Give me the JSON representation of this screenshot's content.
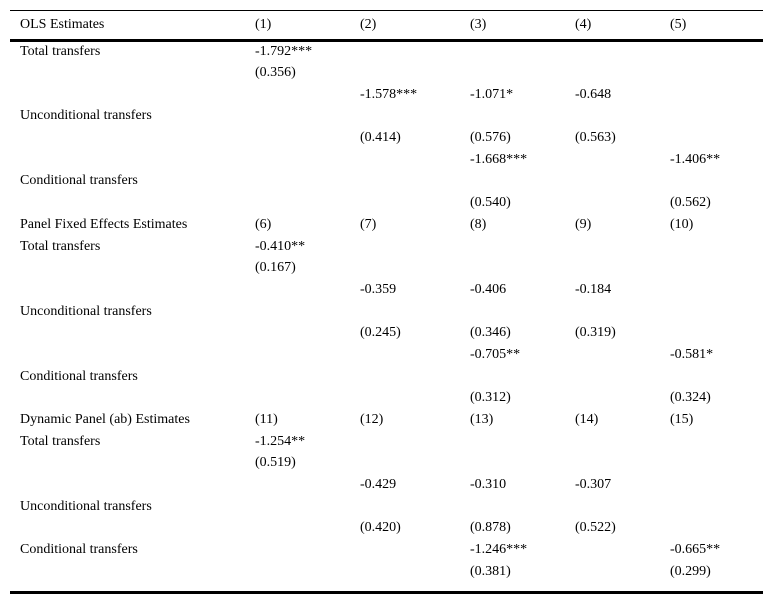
{
  "colors": {
    "background": "#ffffff",
    "text": "#000000",
    "rule": "#000000"
  },
  "table": {
    "panels": [
      {
        "title": "OLS Estimates",
        "column_labels": [
          "(1)",
          "(2)",
          "(3)",
          "(4)",
          "(5)"
        ],
        "rows": [
          [
            "Total transfers",
            "-1.792***",
            "",
            "",
            "",
            ""
          ],
          [
            "",
            "(0.356)",
            "",
            "",
            "",
            ""
          ],
          [
            "",
            "",
            "-1.578***",
            "-1.071*",
            "-0.648",
            ""
          ],
          [
            "Unconditional transfers",
            "",
            "",
            "",
            "",
            ""
          ],
          [
            "",
            "",
            "(0.414)",
            "(0.576)",
            "(0.563)",
            ""
          ],
          [
            "",
            "",
            "",
            "-1.668***",
            "",
            "-1.406**"
          ],
          [
            "Conditional transfers",
            "",
            "",
            "",
            "",
            ""
          ],
          [
            "",
            "",
            "",
            "(0.540)",
            "",
            "(0.562)"
          ]
        ]
      },
      {
        "title": "Panel Fixed Effects Estimates",
        "column_labels": [
          "(6)",
          "(7)",
          "(8)",
          "(9)",
          "(10)"
        ],
        "rows": [
          [
            "Total transfers",
            "-0.410**",
            "",
            "",
            "",
            ""
          ],
          [
            "",
            "(0.167)",
            "",
            "",
            "",
            ""
          ],
          [
            "",
            "",
            "-0.359",
            "-0.406",
            "-0.184",
            ""
          ],
          [
            "Unconditional transfers",
            "",
            "",
            "",
            "",
            ""
          ],
          [
            "",
            "",
            "(0.245)",
            "(0.346)",
            "(0.319)",
            ""
          ],
          [
            "",
            "",
            "",
            "-0.705**",
            "",
            "-0.581*"
          ],
          [
            "Conditional transfers",
            "",
            "",
            "",
            "",
            ""
          ],
          [
            "",
            "",
            "",
            "(0.312)",
            "",
            "(0.324)"
          ]
        ]
      },
      {
        "title": "Dynamic Panel (ab) Estimates",
        "column_labels": [
          "(11)",
          "(12)",
          "(13)",
          "(14)",
          "(15)"
        ],
        "rows": [
          [
            "Total transfers",
            "-1.254**",
            "",
            "",
            "",
            ""
          ],
          [
            "",
            "(0.519)",
            "",
            "",
            "",
            ""
          ],
          [
            "",
            "",
            "-0.429",
            "-0.310",
            "-0.307",
            ""
          ],
          [
            "Unconditional transfers",
            "",
            "",
            "",
            "",
            ""
          ],
          [
            "",
            "",
            "(0.420)",
            "(0.878)",
            "(0.522)",
            ""
          ],
          [
            "Conditional transfers",
            "",
            "",
            "-1.246***",
            "",
            "-0.665**"
          ],
          [
            "",
            "",
            "",
            "(0.381)",
            "",
            "(0.299)"
          ]
        ]
      }
    ]
  }
}
